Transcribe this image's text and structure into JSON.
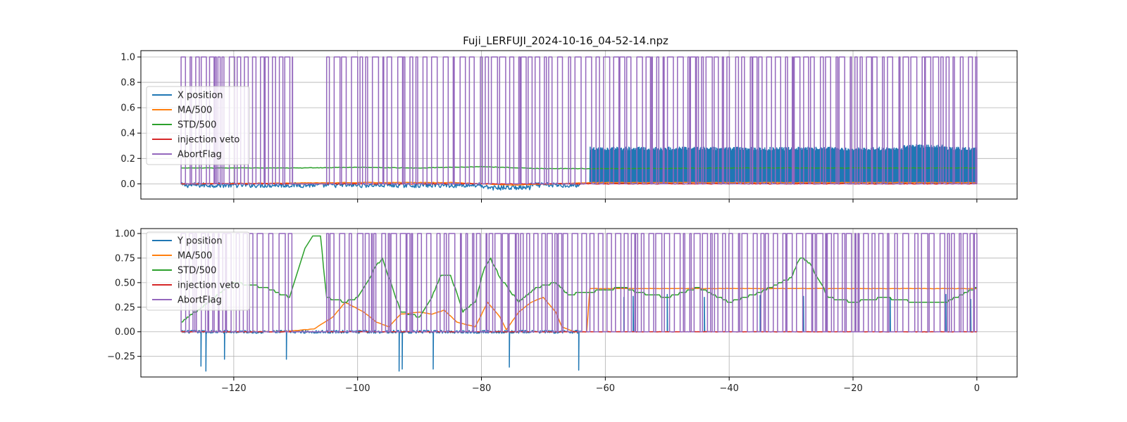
{
  "chart_data": [
    {
      "type": "line",
      "title": "Fuji_LERFUJI_2024-10-16_04-52-14.npz",
      "xlabel": "",
      "ylabel": "",
      "xlim": [
        -135,
        6.5
      ],
      "ylim": [
        -0.12,
        1.05
      ],
      "xticks": [
        -120,
        -100,
        -80,
        -60,
        -40,
        -20,
        0
      ],
      "xtick_labels_visible": false,
      "yticks": [
        0.0,
        0.2,
        0.4,
        0.6,
        0.8,
        1.0
      ],
      "ytick_labels": [
        "0.0",
        "0.2",
        "0.4",
        "0.6",
        "0.8",
        "1.0"
      ],
      "grid": true,
      "legend_position": "center-left",
      "series": [
        {
          "name": "X position",
          "color": "#1f77b4",
          "segments": [
            {
              "x": [
                -128.5,
                -64
              ],
              "baseline": -0.01,
              "noise": 0.02
            },
            {
              "x": [
                -62.5,
                0
              ],
              "low": 0.0,
              "high": 0.29,
              "oscillating": true
            }
          ]
        },
        {
          "name": "MA/500",
          "color": "#ff7f0e",
          "x": [
            -128.5,
            -100,
            -85,
            -75,
            -62,
            0
          ],
          "y": [
            0.0,
            0.01,
            0.01,
            -0.01,
            0.01,
            0.01
          ]
        },
        {
          "name": "STD/500",
          "color": "#2ca02c",
          "x": [
            -128.5,
            -110,
            -100,
            -90,
            -80,
            -70,
            -62,
            -40,
            -20,
            0
          ],
          "y": [
            0.125,
            0.125,
            0.13,
            0.125,
            0.135,
            0.12,
            0.12,
            0.125,
            0.125,
            0.125
          ]
        },
        {
          "name": "injection veto",
          "color": "#d62728",
          "x": [
            -128.5,
            0
          ],
          "y": [
            0.0,
            0.0
          ]
        },
        {
          "name": "AbortFlag",
          "color": "#9467bd",
          "values": [
            0,
            1
          ],
          "active_ranges": [
            [
              -128.5,
              -110.5
            ],
            [
              -105,
              0
            ]
          ]
        }
      ]
    },
    {
      "type": "line",
      "title": "",
      "xlabel": "",
      "ylabel": "",
      "xlim": [
        -135,
        6.5
      ],
      "ylim": [
        -0.46,
        1.05
      ],
      "xticks": [
        -120,
        -100,
        -80,
        -60,
        -40,
        -20,
        0
      ],
      "xtick_labels": [
        "−120",
        "−100",
        "−80",
        "−60",
        "−40",
        "−20",
        "0"
      ],
      "yticks": [
        -0.25,
        0.0,
        0.25,
        0.5,
        0.75,
        1.0
      ],
      "ytick_labels": [
        "−0.25",
        "0.00",
        "0.25",
        "0.50",
        "0.75",
        "1.00"
      ],
      "grid": true,
      "legend_position": "top-left",
      "series": [
        {
          "name": "Y position",
          "color": "#1f77b4",
          "baseline": 0.0,
          "spikes": [
            [
              -125.3,
              -0.35
            ],
            [
              -124.5,
              -0.4
            ],
            [
              -121.5,
              -0.28
            ],
            [
              -111.5,
              -0.28
            ],
            [
              -93.3,
              -0.4
            ],
            [
              -92.8,
              -0.38
            ],
            [
              -87.8,
              -0.38
            ],
            [
              -75.5,
              -0.36
            ],
            [
              -64.3,
              -0.39
            ],
            [
              -57,
              0.35
            ],
            [
              -55.5,
              0.36
            ],
            [
              -50,
              0.38
            ],
            [
              -44,
              0.35
            ],
            [
              -35,
              0.37
            ],
            [
              -28,
              0.36
            ],
            [
              -14,
              0.35
            ],
            [
              -5,
              0.38
            ],
            [
              -1,
              0.33
            ]
          ]
        },
        {
          "name": "MA/500",
          "color": "#ff7f0e",
          "x": [
            -128.5,
            -112,
            -107,
            -104,
            -102,
            -99,
            -97,
            -95,
            -93,
            -90,
            -88,
            -86,
            -84,
            -81,
            -79,
            -77,
            -76,
            -74,
            -72,
            -70,
            -68,
            -67,
            -65,
            -63,
            -62.5,
            0
          ],
          "y": [
            0.0,
            0.0,
            0.03,
            0.15,
            0.3,
            0.2,
            0.1,
            0.05,
            0.18,
            0.2,
            0.18,
            0.22,
            0.1,
            0.05,
            0.3,
            0.15,
            0.02,
            0.2,
            0.3,
            0.35,
            0.2,
            0.05,
            0.0,
            0.0,
            0.44,
            0.44
          ]
        },
        {
          "name": "STD/500",
          "color": "#2ca02c",
          "x": [
            -128.5,
            -124,
            -120,
            -115,
            -111,
            -108.5,
            -107.3,
            -106,
            -105,
            -102,
            -100,
            -98,
            -97,
            -96,
            -93,
            -90,
            -88,
            -86.5,
            -85,
            -83,
            -81,
            -79.5,
            -78.5,
            -77,
            -74,
            -71,
            -68,
            -66,
            -63,
            -57,
            -55,
            -50,
            -45,
            -40,
            -35,
            -30,
            -28.5,
            -27,
            -24,
            -20,
            -15,
            -10,
            -5,
            0
          ],
          "y": [
            0.1,
            0.3,
            0.5,
            0.45,
            0.35,
            0.85,
            0.97,
            0.97,
            0.35,
            0.3,
            0.35,
            0.55,
            0.68,
            0.74,
            0.2,
            0.15,
            0.35,
            0.58,
            0.58,
            0.2,
            0.3,
            0.66,
            0.74,
            0.55,
            0.3,
            0.45,
            0.5,
            0.38,
            0.4,
            0.45,
            0.4,
            0.35,
            0.45,
            0.3,
            0.4,
            0.55,
            0.76,
            0.7,
            0.35,
            0.3,
            0.35,
            0.3,
            0.3,
            0.45
          ]
        },
        {
          "name": "injection veto",
          "color": "#d62728",
          "x": [
            -128.5,
            0
          ],
          "y": [
            0.0,
            0.0
          ]
        },
        {
          "name": "AbortFlag",
          "color": "#9467bd",
          "values": [
            0,
            1
          ],
          "active_ranges": [
            [
              -128.5,
              -110.5
            ],
            [
              -105,
              0
            ]
          ]
        }
      ]
    }
  ]
}
